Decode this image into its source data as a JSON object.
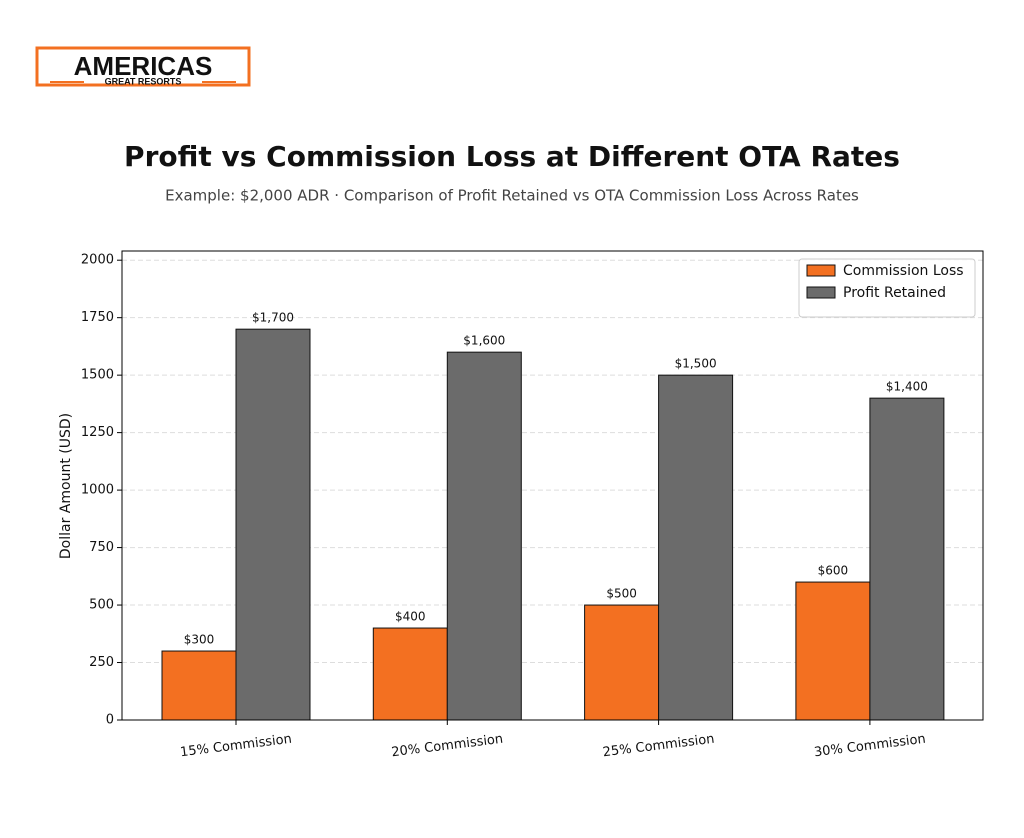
{
  "logo": {
    "name": "AMERICAS",
    "tagline": "GREAT RESORTS"
  },
  "chart_data": {
    "type": "bar",
    "title": "Profit vs Commission Loss at Different OTA Rates",
    "subtitle": "Example: $2,000 ADR · Comparison of Profit Retained vs OTA Commission Loss Across Rates",
    "y_label": "Dollar Amount (USD)",
    "categories": [
      "15% Commission",
      "20% Commission",
      "25% Commission",
      "30% Commission"
    ],
    "series": [
      {
        "name": "Commission Loss",
        "color": "#f37021",
        "values": [
          300,
          400,
          500,
          600
        ],
        "value_labels": [
          "$300",
          "$400",
          "$500",
          "$600"
        ]
      },
      {
        "name": "Profit Retained",
        "color": "#6b6b6b",
        "values": [
          1700,
          1600,
          1500,
          1400
        ],
        "value_labels": [
          "$1,700",
          "$1,600",
          "$1,500",
          "$1,400"
        ]
      }
    ],
    "ylim": [
      0,
      2040
    ],
    "yticks": [
      0,
      250,
      500,
      750,
      1000,
      1250,
      1500,
      1750,
      2000
    ],
    "grid": true,
    "legend": "upper-right"
  }
}
